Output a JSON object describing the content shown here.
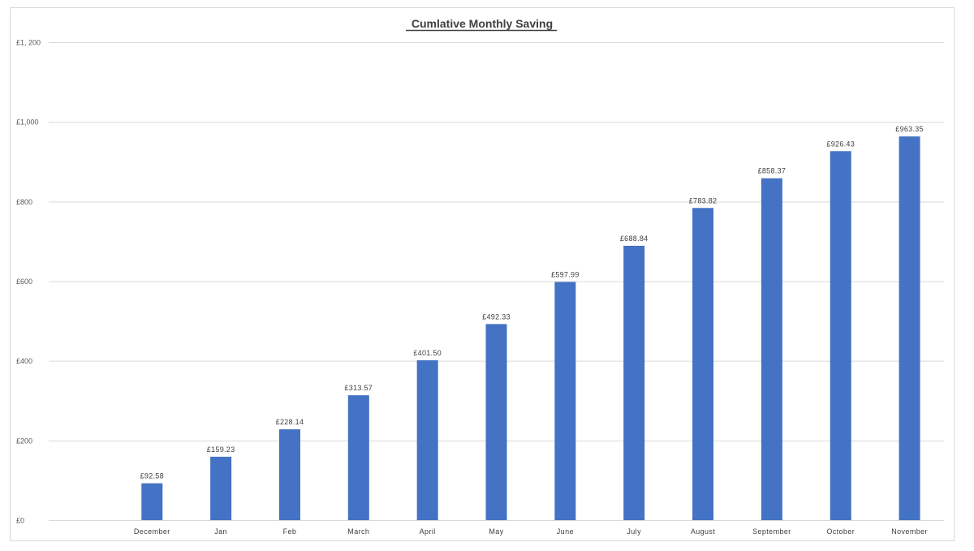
{
  "chart_data": {
    "type": "bar",
    "title": "Cumlative Monthly Saving",
    "xlabel": "",
    "ylabel": "",
    "categories": [
      "",
      "December",
      "Jan",
      "Feb",
      "March",
      "April",
      "May",
      "June",
      "July",
      "August",
      "September",
      "October",
      "November"
    ],
    "values": [
      null,
      92.58,
      159.23,
      228.14,
      313.57,
      401.5,
      492.33,
      597.99,
      688.84,
      783.82,
      858.37,
      926.43,
      963.35
    ],
    "data_labels": [
      "",
      "£92.58",
      "£159.23",
      "£228.14",
      "£313.57",
      "£401.50",
      "£492.33",
      "£597.99",
      "£688.84",
      "£783.82",
      "£858.37",
      "£926.43",
      "£963.35"
    ],
    "ylim": [
      0,
      1200
    ],
    "y_ticks": [
      0,
      200,
      400,
      600,
      800,
      1000,
      1200
    ],
    "y_tick_labels": [
      "£0",
      "£200",
      "£400",
      "£600",
      "£800",
      "£1,000",
      "£1, 200"
    ],
    "grid": true,
    "legend": "none",
    "bar_color": "#4472C4",
    "gridline_color": "#d9d9d9"
  }
}
